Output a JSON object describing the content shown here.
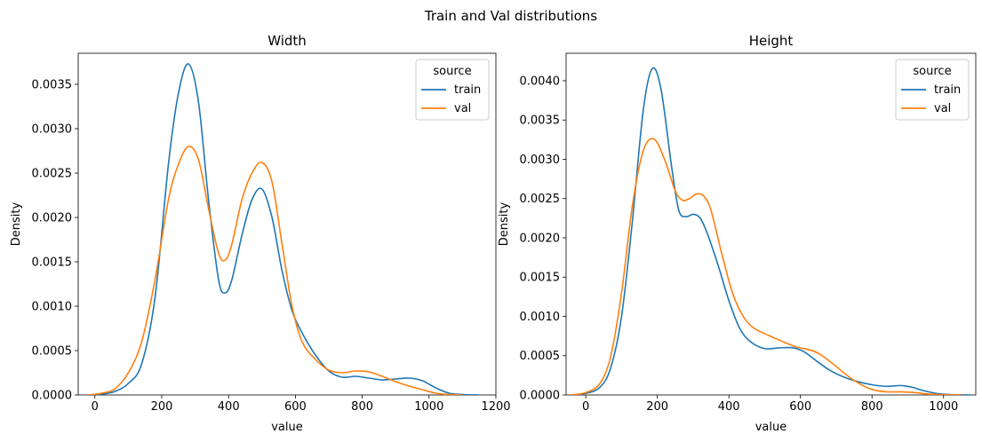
{
  "figure": {
    "title": "Train and Val distributions"
  },
  "chart_data": [
    {
      "type": "line",
      "kind": "kde",
      "title": "Width",
      "xlabel": "value",
      "ylabel": "Density",
      "xlim": [
        -50,
        1200
      ],
      "ylim": [
        0,
        0.00385
      ],
      "xticks": [
        0,
        200,
        400,
        600,
        800,
        1000,
        1200
      ],
      "xtick_labels": [
        "0",
        "200",
        "400",
        "600",
        "800",
        "1000",
        "1200"
      ],
      "yticks": [
        0,
        0.0005,
        0.001,
        0.0015,
        0.002,
        0.0025,
        0.003,
        0.0035
      ],
      "ytick_labels": [
        "0.0000",
        "0.0005",
        "0.0010",
        "0.0015",
        "0.0020",
        "0.0025",
        "0.0030",
        "0.0035"
      ],
      "legend": {
        "title": "source",
        "position": "top-right"
      },
      "series": [
        {
          "name": "train",
          "color": "#1f77b4",
          "x": [
            -20,
            20,
            60,
            100,
            140,
            180,
            220,
            250,
            280,
            310,
            340,
            370,
            390,
            410,
            440,
            470,
            500,
            530,
            560,
            590,
            620,
            660,
            700,
            740,
            780,
            820,
            860,
            900,
            940,
            980,
            1020,
            1060,
            1100,
            1150
          ],
          "y": [
            0.0,
            1e-05,
            4e-05,
            0.00013,
            0.00035,
            0.0011,
            0.0026,
            0.0034,
            0.00373,
            0.0033,
            0.0022,
            0.0013,
            0.00115,
            0.0013,
            0.0018,
            0.0022,
            0.00232,
            0.002,
            0.0014,
            0.00095,
            0.0007,
            0.00045,
            0.00027,
            0.0002,
            0.00021,
            0.00019,
            0.00017,
            0.00018,
            0.00019,
            0.00016,
            8e-05,
            2e-05,
            5e-06,
            0.0
          ]
        },
        {
          "name": "val",
          "color": "#ff7f0e",
          "x": [
            -20,
            20,
            60,
            100,
            140,
            180,
            220,
            250,
            280,
            310,
            340,
            370,
            390,
            410,
            440,
            470,
            500,
            530,
            560,
            590,
            620,
            660,
            700,
            740,
            780,
            820,
            860,
            900,
            940,
            980,
            1020,
            1060,
            1100
          ],
          "y": [
            0.0,
            2e-05,
            7e-05,
            0.00025,
            0.0006,
            0.0013,
            0.0022,
            0.0026,
            0.0028,
            0.00265,
            0.0021,
            0.0016,
            0.00152,
            0.0017,
            0.0022,
            0.0025,
            0.00262,
            0.0024,
            0.0017,
            0.001,
            0.0006,
            0.0004,
            0.00028,
            0.00025,
            0.00027,
            0.00026,
            0.00021,
            0.00015,
            0.0001,
            6e-05,
            2e-05,
            5e-06,
            0.0
          ]
        }
      ]
    },
    {
      "type": "line",
      "kind": "kde",
      "title": "Height",
      "xlabel": "value",
      "ylabel": "Density",
      "xlim": [
        -55,
        1090
      ],
      "ylim": [
        0,
        0.00435
      ],
      "xticks": [
        0,
        200,
        400,
        600,
        800,
        1000
      ],
      "xtick_labels": [
        "0",
        "200",
        "400",
        "600",
        "800",
        "1000"
      ],
      "yticks": [
        0,
        0.0005,
        0.001,
        0.0015,
        0.002,
        0.0025,
        0.003,
        0.0035,
        0.004
      ],
      "ytick_labels": [
        "0.0000",
        "0.0005",
        "0.0010",
        "0.0015",
        "0.0020",
        "0.0025",
        "0.0030",
        "0.0035",
        "0.0040"
      ],
      "legend": {
        "title": "source",
        "position": "top-right"
      },
      "series": [
        {
          "name": "train",
          "color": "#1f77b4",
          "x": [
            -45,
            0,
            40,
            70,
            100,
            130,
            160,
            185,
            210,
            240,
            260,
            280,
            300,
            320,
            340,
            370,
            400,
            430,
            460,
            500,
            540,
            580,
            610,
            640,
            680,
            720,
            760,
            800,
            840,
            880,
            910,
            940,
            980,
            1020,
            1075
          ],
          "y": [
            0.0,
            2e-05,
            0.0001,
            0.00035,
            0.001,
            0.0022,
            0.0036,
            0.00415,
            0.0039,
            0.0029,
            0.00235,
            0.00227,
            0.0023,
            0.00225,
            0.00205,
            0.00165,
            0.0012,
            0.00085,
            0.00068,
            0.00059,
            0.0006,
            0.0006,
            0.00055,
            0.00045,
            0.00032,
            0.00023,
            0.00017,
            0.00013,
            0.00011,
            0.00012,
            0.0001,
            6e-05,
            2e-05,
            5e-06,
            0.0
          ]
        },
        {
          "name": "val",
          "color": "#ff7f0e",
          "x": [
            -45,
            0,
            40,
            70,
            100,
            130,
            160,
            190,
            220,
            250,
            270,
            290,
            310,
            330,
            350,
            380,
            410,
            440,
            470,
            510,
            550,
            590,
            620,
            650,
            690,
            730,
            770,
            800,
            840,
            880,
            920,
            960,
            1000,
            1050
          ],
          "y": [
            0.0,
            3e-05,
            0.00015,
            0.0005,
            0.0013,
            0.0024,
            0.0031,
            0.00326,
            0.003,
            0.0026,
            0.00248,
            0.0025,
            0.00256,
            0.00253,
            0.00235,
            0.0018,
            0.0013,
            0.001,
            0.00085,
            0.00076,
            0.00068,
            0.00061,
            0.00058,
            0.00053,
            0.0004,
            0.00025,
            0.00013,
            7e-05,
            4e-05,
            4e-05,
            3e-05,
            1e-05,
            3e-06,
            0.0
          ]
        }
      ]
    }
  ]
}
